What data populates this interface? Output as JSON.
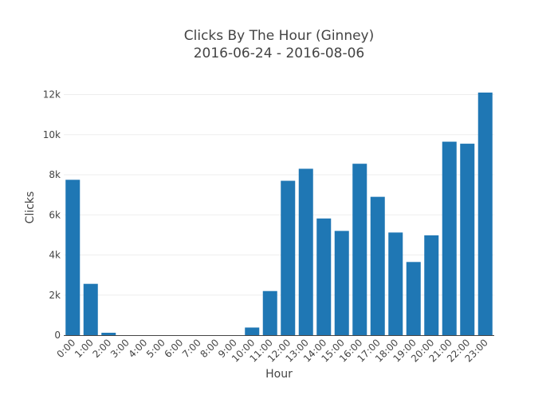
{
  "chart_data": {
    "type": "bar",
    "title": "Clicks By The Hour (Ginney)",
    "subtitle": "2016-06-24 - 2016-08-06",
    "xlabel": "Hour",
    "ylabel": "Clicks",
    "categories": [
      "0:00",
      "1:00",
      "2:00",
      "3:00",
      "4:00",
      "5:00",
      "6:00",
      "7:00",
      "8:00",
      "9:00",
      "10:00",
      "11:00",
      "12:00",
      "13:00",
      "14:00",
      "15:00",
      "16:00",
      "17:00",
      "18:00",
      "19:00",
      "20:00",
      "21:00",
      "22:00",
      "23:00"
    ],
    "values": [
      7750,
      2560,
      120,
      0,
      0,
      0,
      0,
      0,
      0,
      0,
      380,
      2200,
      7700,
      8300,
      5820,
      5200,
      8550,
      6900,
      5120,
      3650,
      4980,
      9650,
      9550,
      12100
    ],
    "ylim": [
      0,
      12100
    ],
    "yticks": [
      0,
      2000,
      4000,
      6000,
      8000,
      10000,
      12000
    ],
    "ytick_labels": [
      "0",
      "2k",
      "4k",
      "6k",
      "8k",
      "10k",
      "12k"
    ],
    "grid": true,
    "bar_color": "#1f77b4"
  }
}
